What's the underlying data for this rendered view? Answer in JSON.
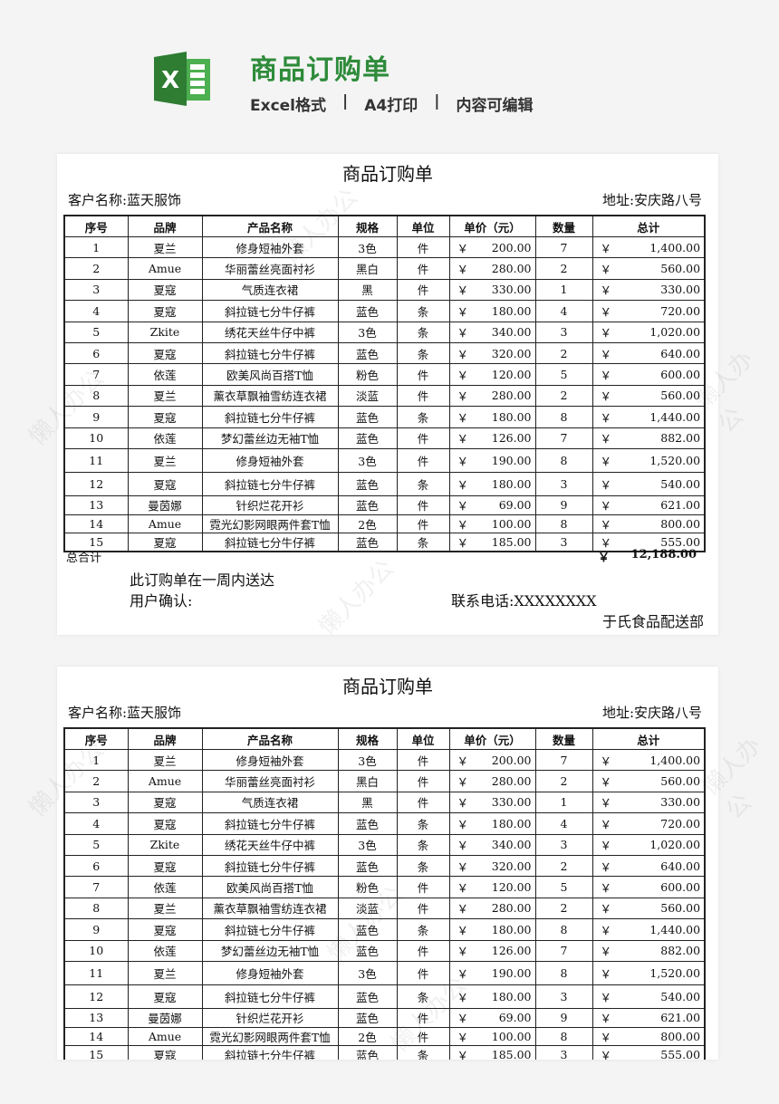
{
  "header": {
    "title": "商品订购单",
    "subtitle": [
      "Excel格式",
      "|",
      "A4打印",
      "|",
      "内容可编辑"
    ],
    "accent": "#2e8b3a"
  },
  "watermark": "懒人办公",
  "order": {
    "title": "商品订购单",
    "customer": "客户名称:蓝天服饰",
    "address": "地址:安庆路八号",
    "columns": [
      "序号",
      "品牌",
      "产品名称",
      "规格",
      "单位",
      "单价（元）",
      "数量",
      "总计"
    ],
    "currency": "￥",
    "rows": [
      [
        "1",
        "夏兰",
        "修身短袖外套",
        "3色",
        "件",
        "200.00",
        "7",
        "1,400.00"
      ],
      [
        "2",
        "Amue",
        "华丽蕾丝亮面衬衫",
        "黑白",
        "件",
        "280.00",
        "2",
        "560.00"
      ],
      [
        "3",
        "夏寇",
        "气质连衣裙",
        "黑",
        "件",
        "330.00",
        "1",
        "330.00"
      ],
      [
        "4",
        "夏寇",
        "斜拉链七分牛仔裤",
        "蓝色",
        "条",
        "180.00",
        "4",
        "720.00"
      ],
      [
        "5",
        "Zkite",
        "绣花天丝牛仔中裤",
        "3色",
        "条",
        "340.00",
        "3",
        "1,020.00"
      ],
      [
        "6",
        "夏寇",
        "斜拉链七分牛仔裤",
        "蓝色",
        "条",
        "320.00",
        "2",
        "640.00"
      ],
      [
        "7",
        "依莲",
        "欧美风尚百搭T恤",
        "粉色",
        "件",
        "120.00",
        "5",
        "600.00"
      ],
      [
        "8",
        "夏兰",
        "薰衣草飘袖雪纺连衣裙",
        "淡蓝",
        "件",
        "280.00",
        "2",
        "560.00"
      ],
      [
        "9",
        "夏寇",
        "斜拉链七分牛仔裤",
        "蓝色",
        "条",
        "180.00",
        "8",
        "1,440.00"
      ],
      [
        "10",
        "依莲",
        "梦幻蕾丝边无袖T恤",
        "蓝色",
        "件",
        "126.00",
        "7",
        "882.00"
      ],
      [
        "11",
        "夏兰",
        "修身短袖外套",
        "3色",
        "件",
        "190.00",
        "8",
        "1,520.00"
      ],
      [
        "12",
        "夏寇",
        "斜拉链七分牛仔裤",
        "蓝色",
        "条",
        "180.00",
        "3",
        "540.00"
      ],
      [
        "13",
        "曼茵娜",
        "针织烂花开衫",
        "蓝色",
        "件",
        "69.00",
        "9",
        "621.00"
      ],
      [
        "14",
        "Amue",
        "霓光幻影网眼两件套T恤",
        "2色",
        "件",
        "100.00",
        "8",
        "800.00"
      ],
      [
        "15",
        "夏寇",
        "斜拉链七分牛仔裤",
        "蓝色",
        "条",
        "185.00",
        "3",
        "555.00"
      ]
    ],
    "total_label": "总合计",
    "total_value": "12,188.00",
    "note": "此订购单在一周内送达",
    "confirm": "用户确认:",
    "phone": "联系电话:XXXXXXXX",
    "department": "于氏食品配送部"
  }
}
